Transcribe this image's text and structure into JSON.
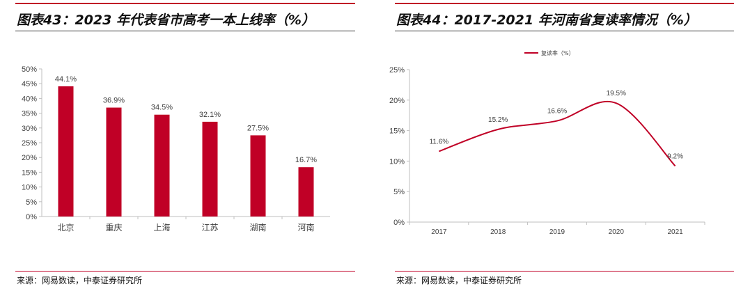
{
  "colors": {
    "accent": "#c00026",
    "axis": "#bfbfbf",
    "text": "#404040"
  },
  "left": {
    "title": "图表43：2023 年代表省市高考一本上线率（%）",
    "source": "来源：网易数读，中泰证券研究所",
    "chart_data": {
      "type": "bar",
      "categories": [
        "北京",
        "重庆",
        "上海",
        "江苏",
        "湖南",
        "河南"
      ],
      "values": [
        44.1,
        36.9,
        34.5,
        32.1,
        27.5,
        16.7
      ],
      "data_labels": [
        "44.1%",
        "36.9%",
        "34.5%",
        "32.1%",
        "27.5%",
        "16.7%"
      ],
      "yticks": [
        0,
        5,
        10,
        15,
        20,
        25,
        30,
        35,
        40,
        45,
        50
      ],
      "ytick_labels": [
        "0%",
        "5%",
        "10%",
        "15%",
        "20%",
        "25%",
        "30%",
        "35%",
        "40%",
        "45%",
        "50%"
      ],
      "ylim": [
        0,
        50
      ],
      "grid": false,
      "legend": "none"
    }
  },
  "right": {
    "title": "图表44：2017-2021 年河南省复读率情况（%）",
    "source": "来源：网易数读，中泰证券研究所",
    "chart_data": {
      "type": "line",
      "x": [
        "2017",
        "2018",
        "2019",
        "2020",
        "2021"
      ],
      "series": [
        {
          "name": "复读率（%）",
          "values": [
            11.6,
            15.2,
            16.6,
            19.5,
            9.2
          ],
          "data_labels": [
            "11.6%",
            "15.2%",
            "16.6%",
            "19.5%",
            "9.2%"
          ]
        }
      ],
      "yticks": [
        0,
        5,
        10,
        15,
        20,
        25
      ],
      "ytick_labels": [
        "0%",
        "5%",
        "10%",
        "15%",
        "20%",
        "25%"
      ],
      "ylim": [
        0,
        25
      ],
      "smooth": true,
      "grid": false,
      "legend": "top"
    }
  }
}
